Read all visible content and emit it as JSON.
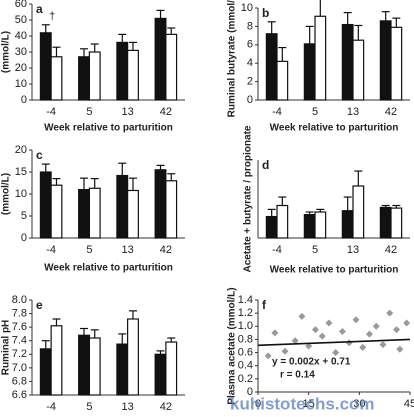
{
  "chart_data": [
    {
      "type": "bar",
      "panel": "a",
      "ylabel": "(mmol/L)",
      "xlabel": "Week relative to parturition",
      "annotation": "†",
      "categories": [
        "-4",
        "5",
        "13",
        "42"
      ],
      "ylim": [
        0,
        60
      ],
      "yticks": [
        0,
        10,
        20,
        30,
        40,
        50,
        60
      ],
      "series": [
        {
          "color": "#111111",
          "values": [
            42,
            27,
            36,
            51
          ],
          "errors": [
            5,
            5,
            5,
            5
          ]
        },
        {
          "color": "#ffffff",
          "values": [
            27,
            30,
            31,
            41
          ],
          "errors": [
            6,
            5,
            5,
            4
          ]
        }
      ]
    },
    {
      "type": "bar",
      "panel": "b",
      "ylabel": "Ruminal butyrate (mmol/L)",
      "xlabel": "Week relative to parturition",
      "categories": [
        "-4",
        "5",
        "13",
        "42"
      ],
      "ylim": [
        0,
        10
      ],
      "yticks": [
        0,
        2,
        4,
        6,
        8,
        10
      ],
      "series": [
        {
          "color": "#111111",
          "values": [
            7.2,
            6.1,
            8.2,
            8.6
          ],
          "errors": [
            1.3,
            1.9,
            1.3,
            1.0
          ]
        },
        {
          "color": "#ffffff",
          "values": [
            4.2,
            9.1,
            6.5,
            7.9
          ],
          "errors": [
            1.5,
            2.5,
            1.6,
            1.0
          ]
        }
      ]
    },
    {
      "type": "bar",
      "panel": "c",
      "ylabel": "(mmol/L)",
      "xlabel": "Week relative to parturition",
      "categories": [
        "-4",
        "5",
        "13",
        "42"
      ],
      "ylim": [
        0,
        20
      ],
      "yticks": [
        0,
        5,
        10,
        15,
        20
      ],
      "series": [
        {
          "color": "#111111",
          "values": [
            15,
            11,
            14.2,
            15.5
          ],
          "errors": [
            1.8,
            2.6,
            2.8,
            1.0
          ]
        },
        {
          "color": "#ffffff",
          "values": [
            12,
            11.3,
            10.8,
            13
          ],
          "errors": [
            1.5,
            2.2,
            2.8,
            1.6
          ]
        }
      ]
    },
    {
      "type": "bar",
      "panel": "d",
      "ylabel": "Acetate + butyrate / propionate",
      "xlabel": "Week relative to parturition",
      "categories": [
        "-4",
        "5",
        "13",
        "42"
      ],
      "ylim": [
        0,
        12
      ],
      "series": [
        {
          "color": "#111111",
          "values": [
            3.3,
            3.6,
            4.2,
            4.7
          ],
          "errors": [
            1.1,
            0.4,
            2.1,
            0.3
          ]
        },
        {
          "color": "#ffffff",
          "values": [
            5,
            4,
            8,
            4.6
          ],
          "errors": [
            1.3,
            0.4,
            2.3,
            0.4
          ]
        }
      ]
    },
    {
      "type": "bar",
      "panel": "e",
      "ylabel": "Ruminal pH",
      "categories": [
        "-4",
        "5",
        "13",
        "42"
      ],
      "ylim": [
        6.6,
        8.0
      ],
      "yticks": [
        6.6,
        6.8,
        {
          "value": 7,
          "label": "7.0"
        },
        7.2,
        7.4,
        7.6,
        7.8,
        {
          "value": 8,
          "label": "8.0"
        }
      ],
      "series": [
        {
          "color": "#111111",
          "values": [
            7.28,
            7.48,
            7.35,
            7.2
          ],
          "errors": [
            0.12,
            0.1,
            0.15,
            0.05
          ]
        },
        {
          "color": "#ffffff",
          "values": [
            7.62,
            7.44,
            7.72,
            7.38
          ],
          "errors": [
            0.1,
            0.12,
            0.12,
            0.06
          ]
        }
      ]
    },
    {
      "type": "scatter",
      "panel": "f",
      "ylabel": "Plasma acetate (mmol/L)",
      "equation": "y = 0.002x + 0.71",
      "r_label": "r = 0.14",
      "xlim": [
        0,
        45
      ],
      "xticks": [
        0,
        15,
        30,
        45
      ],
      "ylim": [
        0,
        1.4
      ],
      "yticks": [
        0,
        0.2,
        0.4,
        0.6,
        0.8,
        {
          "value": 1,
          "label": "1.0"
        },
        1.2,
        1.4
      ],
      "color": "#999999",
      "x": [
        3,
        5,
        8,
        11,
        13,
        15,
        17,
        19,
        21,
        23,
        25,
        27,
        29,
        31,
        33,
        35,
        37,
        39,
        41,
        42,
        44
      ],
      "y": [
        0.55,
        0.9,
        0.62,
        0.78,
        1.15,
        0.7,
        0.95,
        0.85,
        1.05,
        0.6,
        0.92,
        0.75,
        1.1,
        0.68,
        0.88,
        1.0,
        0.72,
        1.2,
        0.95,
        0.65,
        1.05
      ],
      "trendline": {
        "x": [
          0,
          45
        ],
        "y": [
          0.71,
          0.8
        ]
      }
    },
    {
      "watermark": "kuhistotechs.com"
    }
  ]
}
